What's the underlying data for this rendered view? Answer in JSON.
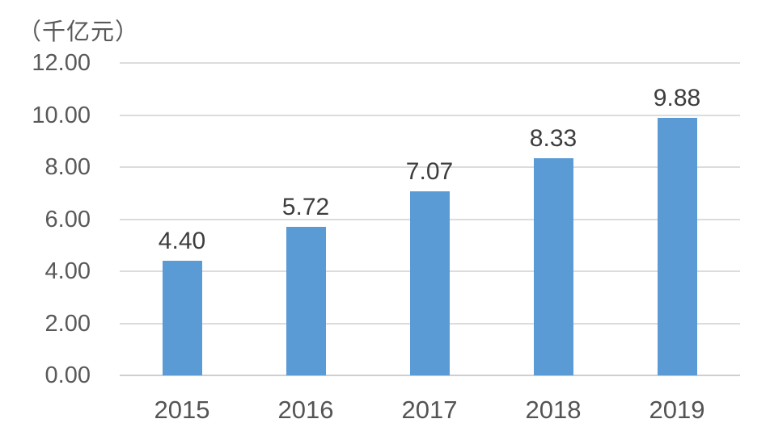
{
  "chart_data": {
    "type": "bar",
    "title": "",
    "unit_label": "（千亿元）",
    "categories": [
      "2015",
      "2016",
      "2017",
      "2018",
      "2019"
    ],
    "values": [
      4.4,
      5.72,
      7.07,
      8.33,
      9.88
    ],
    "data_labels": [
      "4.40",
      "5.72",
      "7.07",
      "8.33",
      "9.88"
    ],
    "series": [
      {
        "name": "",
        "values": [
          4.4,
          5.72,
          7.07,
          8.33,
          9.88
        ]
      }
    ],
    "y_ticks": [
      {
        "value": 12,
        "label": "12.00"
      },
      {
        "value": 10,
        "label": "10.00"
      },
      {
        "value": 8,
        "label": "8.00"
      },
      {
        "value": 6,
        "label": "6.00"
      },
      {
        "value": 4,
        "label": "4.00"
      },
      {
        "value": 2,
        "label": "2.00"
      },
      {
        "value": 0,
        "label": "0.00"
      }
    ],
    "ylim": [
      0,
      12
    ],
    "y_tick_step": 2,
    "grid": true,
    "legend_position": "none",
    "colors": {
      "bar": "#5B9BD5",
      "gridline": "#DCDCDC",
      "axis_line": "#CFCFCF",
      "tick_label": "#595959",
      "category_label": "#545454",
      "data_label": "#3D3D3D",
      "background": "#FFFFFF"
    }
  }
}
